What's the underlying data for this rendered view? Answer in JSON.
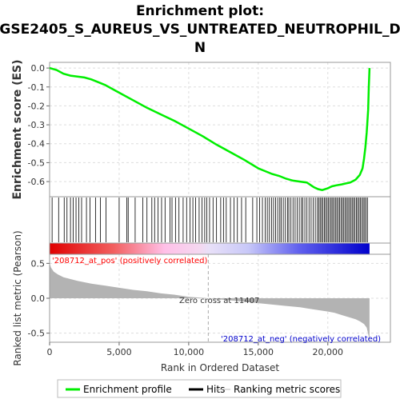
{
  "chart_data": {
    "type": "line",
    "title_lines": [
      "Enrichment plot:",
      "GSE2405_S_AUREUS_VS_UNTREATED_NEUTROPHIL_D",
      "N"
    ],
    "enrichment_panel": {
      "ylabel": "Enrichment score (ES)",
      "ylim": [
        -0.68,
        0.03
      ],
      "yticks": [
        0.0,
        -0.1,
        -0.2,
        -0.3,
        -0.4,
        -0.5,
        -0.6
      ],
      "ytick_labels": [
        "0.0",
        "-0.1",
        "-0.2",
        "-0.3",
        "-0.4",
        "-0.5",
        "-0.6"
      ],
      "series": [
        {
          "name": "Enrichment profile",
          "color": "#00ee00",
          "x": [
            0,
            500,
            1000,
            1500,
            2000,
            2500,
            3000,
            3500,
            4000,
            5000,
            6000,
            7000,
            8000,
            9000,
            10000,
            11000,
            12000,
            13000,
            14000,
            15000,
            16000,
            16500,
            17000,
            17500,
            18000,
            18500,
            19000,
            19300,
            19600,
            20000,
            20300,
            20600,
            21000,
            21300,
            21600,
            22000,
            22300,
            22500,
            22600,
            22700,
            22800,
            22900,
            22950,
            23000
          ],
          "y": [
            0.0,
            -0.01,
            -0.03,
            -0.04,
            -0.045,
            -0.05,
            -0.06,
            -0.075,
            -0.09,
            -0.13,
            -0.17,
            -0.21,
            -0.245,
            -0.28,
            -0.32,
            -0.36,
            -0.405,
            -0.445,
            -0.485,
            -0.53,
            -0.56,
            -0.57,
            -0.585,
            -0.595,
            -0.6,
            -0.605,
            -0.63,
            -0.64,
            -0.645,
            -0.635,
            -0.625,
            -0.62,
            -0.615,
            -0.61,
            -0.605,
            -0.59,
            -0.565,
            -0.53,
            -0.48,
            -0.42,
            -0.34,
            -0.22,
            -0.1,
            0.0
          ]
        }
      ]
    },
    "hits_panel": {
      "hit_positions": [
        180,
        650,
        1050,
        1250,
        1500,
        1700,
        1900,
        2100,
        2300,
        2650,
        2900,
        3300,
        3650,
        4050,
        5000,
        5550,
        5650,
        6150,
        6700,
        7000,
        7350,
        7550,
        7800,
        8050,
        8300,
        8650,
        8800,
        9050,
        9300,
        9600,
        9850,
        10100,
        10300,
        10500,
        10750,
        10950,
        11150,
        11300,
        11500,
        11750,
        12000,
        12300,
        12500,
        12700,
        13000,
        13250,
        13500,
        13800,
        14100,
        14600,
        14900,
        15100,
        15300,
        15500,
        15650,
        15800,
        15950,
        16100,
        16250,
        16400,
        16550,
        16650,
        16800,
        16950,
        17100,
        17200,
        17350,
        17500,
        17650,
        17800,
        17950,
        18100,
        18200,
        18350,
        18500,
        18650,
        18800,
        18950,
        19100,
        19250,
        19350,
        19450,
        19550,
        19650,
        19750,
        19850,
        19950,
        20050,
        20150,
        20250,
        20350,
        20450,
        20550,
        20650,
        20750,
        20850,
        20950,
        21050,
        21150,
        21250,
        21350,
        21450,
        21550,
        21650,
        21750,
        21850,
        21950,
        22050,
        22150,
        22250,
        22350,
        22450,
        22550,
        22650,
        22750,
        22850
      ]
    },
    "metric_panel": {
      "ylabel": "Ranked list metric (Pearson)",
      "ylim": [
        -0.63,
        0.63
      ],
      "yticks": [
        0.5,
        0.0,
        -0.5
      ],
      "ytick_labels": [
        "0.5",
        "0.0",
        "-0.5"
      ],
      "xlabel": "Rank in Ordered Dataset",
      "xlim": [
        0,
        24500
      ],
      "xticks": [
        0,
        5000,
        10000,
        15000,
        20000
      ],
      "xtick_labels": [
        "0",
        "5,000",
        "10,000",
        "15,000",
        "20,000"
      ],
      "zero_cross": 11407,
      "zero_cross_label": "Zero cross at 11407",
      "pos_label": "'208712_at_pos' (positively correlated)",
      "neg_label": "'208712_at_neg' (negatively correlated)",
      "metric_curve": {
        "x": [
          0,
          100,
          300,
          600,
          1000,
          2000,
          3000,
          4000,
          5000,
          6000,
          7000,
          8000,
          9000,
          10000,
          11407,
          12000,
          13000,
          14000,
          15000,
          16000,
          17000,
          18000,
          19000,
          20000,
          20500,
          21000,
          21500,
          22000,
          22300,
          22600,
          22800,
          22950,
          23000
        ],
        "y": [
          0.5,
          0.44,
          0.38,
          0.34,
          0.3,
          0.25,
          0.21,
          0.18,
          0.15,
          0.12,
          0.1,
          0.07,
          0.05,
          0.02,
          0.0,
          -0.015,
          -0.03,
          -0.05,
          -0.07,
          -0.09,
          -0.11,
          -0.13,
          -0.16,
          -0.19,
          -0.21,
          -0.24,
          -0.27,
          -0.3,
          -0.33,
          -0.37,
          -0.42,
          -0.55,
          -0.62
        ]
      }
    },
    "legend": {
      "placement": "bottom",
      "items": [
        {
          "name": "Enrichment profile",
          "color": "#00ee00"
        },
        {
          "name": "Hits",
          "color": "#000000"
        },
        {
          "name": "Ranking metric scores",
          "color": "#bbbbbb"
        }
      ]
    },
    "colors": {
      "profile": "#00ee00",
      "pos_label": "#ff0000",
      "neg_label": "#0000cc",
      "metric_fill": "#b3b3b3",
      "grid": "#dddddd"
    }
  }
}
